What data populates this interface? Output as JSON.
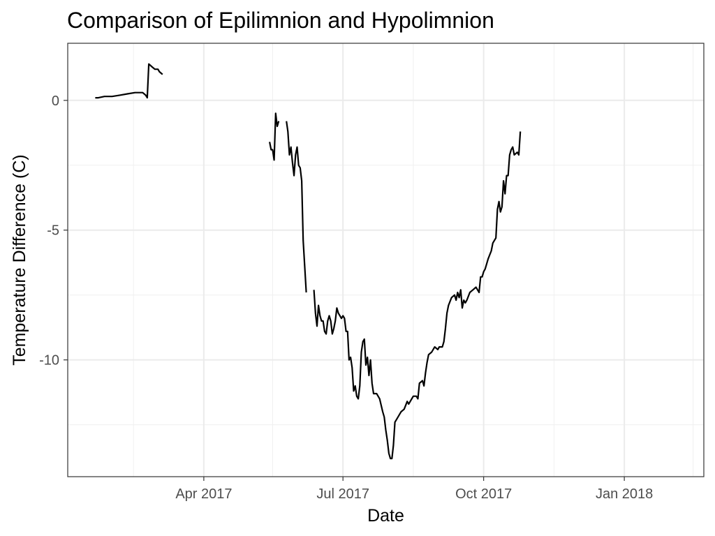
{
  "chart_data": {
    "type": "line",
    "title": "Comparison of Epilimnion and Hypolimnion",
    "xlabel": "Date",
    "ylabel": "Temperature Difference (C)",
    "xlim": [
      "2017-01-02",
      "2018-02-22"
    ],
    "ylim": [
      -14.5,
      2.2
    ],
    "x_ticks": [
      {
        "date": "2017-04-01",
        "label": "Apr 2017"
      },
      {
        "date": "2017-07-01",
        "label": "Jul 2017"
      },
      {
        "date": "2017-10-01",
        "label": "Oct 2017"
      },
      {
        "date": "2018-01-01",
        "label": "Jan 2018"
      }
    ],
    "x_minor_ticks": [
      "2017-02-14",
      "2017-05-16",
      "2017-08-16",
      "2017-11-16",
      "2018-02-15"
    ],
    "y_ticks": [
      {
        "value": 0,
        "label": "0"
      },
      {
        "value": -5,
        "label": "-5"
      },
      {
        "value": -10,
        "label": "-10"
      }
    ],
    "y_minor_ticks": [
      -2.5,
      -7.5,
      -12.5
    ],
    "grid": true,
    "legend": "none",
    "line_color": "#000000",
    "series": [
      {
        "segments": [
          [
            [
              "2017-01-20",
              0.1
            ],
            [
              "2017-01-22",
              0.1
            ],
            [
              "2017-01-26",
              0.15
            ],
            [
              "2017-01-31",
              0.15
            ],
            [
              "2017-02-05",
              0.2
            ],
            [
              "2017-02-10",
              0.25
            ],
            [
              "2017-02-15",
              0.3
            ],
            [
              "2017-02-20",
              0.3
            ],
            [
              "2017-02-22",
              0.2
            ],
            [
              "2017-02-23",
              0.1
            ],
            [
              "2017-02-24",
              1.4
            ],
            [
              "2017-02-26",
              1.3
            ],
            [
              "2017-02-28",
              1.2
            ],
            [
              "2017-03-02",
              1.2
            ],
            [
              "2017-03-03",
              1.1
            ],
            [
              "2017-03-05",
              1.0
            ]
          ],
          [
            [
              "2017-05-14",
              -1.6
            ],
            [
              "2017-05-15",
              -1.9
            ],
            [
              "2017-05-16",
              -1.9
            ],
            [
              "2017-05-17",
              -2.3
            ],
            [
              "2017-05-18",
              -0.5
            ],
            [
              "2017-05-19",
              -1.0
            ],
            [
              "2017-05-20",
              -0.8
            ]
          ],
          [
            [
              "2017-05-25",
              -0.8
            ],
            [
              "2017-05-26",
              -1.2
            ],
            [
              "2017-05-27",
              -2.1
            ],
            [
              "2017-05-28",
              -1.8
            ],
            [
              "2017-05-29",
              -2.4
            ],
            [
              "2017-05-30",
              -2.9
            ],
            [
              "2017-05-31",
              -2.1
            ],
            [
              "2017-06-01",
              -1.8
            ],
            [
              "2017-06-02",
              -2.5
            ],
            [
              "2017-06-03",
              -2.6
            ],
            [
              "2017-06-04",
              -3.1
            ],
            [
              "2017-06-05",
              -5.4
            ],
            [
              "2017-06-07",
              -7.4
            ]
          ],
          [
            [
              "2017-06-12",
              -7.3
            ],
            [
              "2017-06-13",
              -8.2
            ],
            [
              "2017-06-14",
              -8.7
            ],
            [
              "2017-06-15",
              -7.9
            ],
            [
              "2017-06-16",
              -8.3
            ],
            [
              "2017-06-17",
              -8.5
            ],
            [
              "2017-06-18",
              -8.5
            ],
            [
              "2017-06-19",
              -8.9
            ],
            [
              "2017-06-20",
              -9.0
            ],
            [
              "2017-06-21",
              -8.5
            ],
            [
              "2017-06-22",
              -8.3
            ],
            [
              "2017-06-23",
              -8.5
            ],
            [
              "2017-06-24",
              -9.0
            ],
            [
              "2017-06-25",
              -8.8
            ],
            [
              "2017-06-26",
              -8.5
            ],
            [
              "2017-06-27",
              -8.0
            ],
            [
              "2017-06-28",
              -8.2
            ],
            [
              "2017-06-30",
              -8.4
            ],
            [
              "2017-07-01",
              -8.3
            ],
            [
              "2017-07-02",
              -8.4
            ],
            [
              "2017-07-03",
              -8.9
            ],
            [
              "2017-07-04",
              -8.9
            ],
            [
              "2017-07-05",
              -10.0
            ],
            [
              "2017-07-06",
              -9.9
            ],
            [
              "2017-07-07",
              -10.3
            ],
            [
              "2017-07-08",
              -11.2
            ],
            [
              "2017-07-09",
              -11.0
            ],
            [
              "2017-07-10",
              -11.4
            ],
            [
              "2017-07-11",
              -11.5
            ],
            [
              "2017-07-12",
              -11.0
            ],
            [
              "2017-07-13",
              -9.7
            ],
            [
              "2017-07-14",
              -9.3
            ],
            [
              "2017-07-15",
              -9.2
            ],
            [
              "2017-07-16",
              -10.2
            ],
            [
              "2017-07-17",
              -9.9
            ],
            [
              "2017-07-18",
              -10.6
            ],
            [
              "2017-07-19",
              -10.0
            ],
            [
              "2017-07-20",
              -10.9
            ],
            [
              "2017-07-21",
              -11.3
            ],
            [
              "2017-07-23",
              -11.3
            ],
            [
              "2017-07-25",
              -11.5
            ],
            [
              "2017-07-27",
              -12.0
            ],
            [
              "2017-07-28",
              -12.2
            ],
            [
              "2017-07-29",
              -12.7
            ],
            [
              "2017-07-30",
              -13.1
            ],
            [
              "2017-07-31",
              -13.6
            ],
            [
              "2017-08-01",
              -13.8
            ],
            [
              "2017-08-02",
              -13.8
            ],
            [
              "2017-08-03",
              -13.3
            ],
            [
              "2017-08-04",
              -12.4
            ],
            [
              "2017-08-06",
              -12.2
            ],
            [
              "2017-08-08",
              -12.0
            ],
            [
              "2017-08-10",
              -11.9
            ],
            [
              "2017-08-12",
              -11.6
            ],
            [
              "2017-08-13",
              -11.7
            ],
            [
              "2017-08-14",
              -11.6
            ],
            [
              "2017-08-15",
              -11.5
            ],
            [
              "2017-08-16",
              -11.4
            ],
            [
              "2017-08-18",
              -11.4
            ],
            [
              "2017-08-19",
              -11.5
            ],
            [
              "2017-08-20",
              -10.9
            ],
            [
              "2017-08-22",
              -10.8
            ],
            [
              "2017-08-23",
              -11.0
            ],
            [
              "2017-08-24",
              -10.5
            ],
            [
              "2017-08-25",
              -10.1
            ],
            [
              "2017-08-26",
              -9.8
            ],
            [
              "2017-08-28",
              -9.7
            ],
            [
              "2017-08-30",
              -9.5
            ],
            [
              "2017-09-01",
              -9.6
            ],
            [
              "2017-09-02",
              -9.5
            ],
            [
              "2017-09-04",
              -9.5
            ],
            [
              "2017-09-05",
              -9.3
            ],
            [
              "2017-09-06",
              -8.8
            ],
            [
              "2017-09-07",
              -8.2
            ],
            [
              "2017-09-08",
              -7.9
            ],
            [
              "2017-09-10",
              -7.6
            ],
            [
              "2017-09-12",
              -7.5
            ],
            [
              "2017-09-13",
              -7.7
            ],
            [
              "2017-09-14",
              -7.4
            ],
            [
              "2017-09-15",
              -7.6
            ],
            [
              "2017-09-16",
              -7.3
            ],
            [
              "2017-09-17",
              -8.0
            ],
            [
              "2017-09-18",
              -7.7
            ],
            [
              "2017-09-19",
              -7.8
            ],
            [
              "2017-09-20",
              -7.7
            ],
            [
              "2017-09-22",
              -7.4
            ],
            [
              "2017-09-24",
              -7.3
            ],
            [
              "2017-09-26",
              -7.2
            ],
            [
              "2017-09-28",
              -7.4
            ],
            [
              "2017-09-29",
              -6.8
            ],
            [
              "2017-09-30",
              -6.8
            ],
            [
              "2017-10-01",
              -6.6
            ],
            [
              "2017-10-02",
              -6.5
            ],
            [
              "2017-10-04",
              -6.1
            ],
            [
              "2017-10-06",
              -5.8
            ],
            [
              "2017-10-07",
              -5.5
            ],
            [
              "2017-10-09",
              -5.3
            ],
            [
              "2017-10-10",
              -4.2
            ],
            [
              "2017-10-11",
              -3.9
            ],
            [
              "2017-10-12",
              -4.3
            ],
            [
              "2017-10-13",
              -4.1
            ],
            [
              "2017-10-14",
              -3.1
            ],
            [
              "2017-10-15",
              -3.6
            ],
            [
              "2017-10-16",
              -2.9
            ],
            [
              "2017-10-17",
              -2.9
            ],
            [
              "2017-10-18",
              -2.1
            ],
            [
              "2017-10-19",
              -1.9
            ],
            [
              "2017-10-20",
              -1.8
            ],
            [
              "2017-10-21",
              -2.1
            ],
            [
              "2017-10-23",
              -2.0
            ],
            [
              "2017-10-24",
              -2.1
            ],
            [
              "2017-10-25",
              -1.2
            ]
          ]
        ]
      }
    ]
  }
}
